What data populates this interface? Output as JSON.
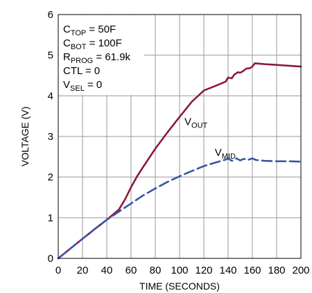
{
  "chart_data": {
    "type": "line",
    "title": "",
    "xlabel": "TIME (SECONDS)",
    "ylabel": "VOLTAGE (V)",
    "xlim": [
      0,
      200
    ],
    "ylim": [
      0,
      6
    ],
    "grid": true,
    "x_ticks": [
      0,
      20,
      40,
      60,
      80,
      100,
      120,
      140,
      160,
      180,
      200
    ],
    "y_ticks": [
      0,
      1,
      2,
      3,
      4,
      5,
      6
    ],
    "series": [
      {
        "name": "VOUT",
        "name_main": "V",
        "name_sub": "OUT",
        "color": "#8b1a3d",
        "style": "solid",
        "points": [
          [
            0,
            0
          ],
          [
            10,
            0.24
          ],
          [
            20,
            0.48
          ],
          [
            30,
            0.72
          ],
          [
            40,
            0.95
          ],
          [
            50,
            1.2
          ],
          [
            52,
            1.3
          ],
          [
            55,
            1.45
          ],
          [
            60,
            1.75
          ],
          [
            65,
            2.02
          ],
          [
            70,
            2.25
          ],
          [
            80,
            2.7
          ],
          [
            90,
            3.1
          ],
          [
            100,
            3.48
          ],
          [
            110,
            3.85
          ],
          [
            120,
            4.13
          ],
          [
            130,
            4.25
          ],
          [
            138,
            4.35
          ],
          [
            140,
            4.45
          ],
          [
            143,
            4.43
          ],
          [
            145,
            4.52
          ],
          [
            148,
            4.58
          ],
          [
            150,
            4.57
          ],
          [
            152,
            4.6
          ],
          [
            155,
            4.67
          ],
          [
            158,
            4.68
          ],
          [
            160,
            4.72
          ],
          [
            162,
            4.8
          ],
          [
            170,
            4.78
          ],
          [
            180,
            4.76
          ],
          [
            190,
            4.74
          ],
          [
            200,
            4.72
          ]
        ]
      },
      {
        "name": "VMID",
        "name_main": "V",
        "name_sub": "MID",
        "color": "#3a55a4",
        "style": "dashed",
        "points": [
          [
            0,
            0
          ],
          [
            10,
            0.24
          ],
          [
            20,
            0.48
          ],
          [
            30,
            0.72
          ],
          [
            40,
            0.95
          ],
          [
            50,
            1.15
          ],
          [
            60,
            1.35
          ],
          [
            70,
            1.55
          ],
          [
            80,
            1.72
          ],
          [
            90,
            1.88
          ],
          [
            100,
            2.02
          ],
          [
            110,
            2.15
          ],
          [
            120,
            2.27
          ],
          [
            130,
            2.36
          ],
          [
            138,
            2.43
          ],
          [
            140,
            2.46
          ],
          [
            143,
            2.4
          ],
          [
            147,
            2.46
          ],
          [
            150,
            2.41
          ],
          [
            153,
            2.45
          ],
          [
            156,
            2.42
          ],
          [
            160,
            2.46
          ],
          [
            163,
            2.42
          ],
          [
            170,
            2.4
          ],
          [
            180,
            2.39
          ],
          [
            190,
            2.39
          ],
          [
            200,
            2.38
          ]
        ]
      }
    ],
    "annotations": [
      {
        "main": "C",
        "sub": "TOP",
        "rest": " = 50F"
      },
      {
        "main": "C",
        "sub": "BOT",
        "rest": " = 100F"
      },
      {
        "main": "R",
        "sub": "PROG",
        "rest": " = 61.9k"
      },
      {
        "main": "CTL = 0",
        "sub": "",
        "rest": ""
      },
      {
        "main": "V",
        "sub": "SEL",
        "rest": " = 0"
      }
    ]
  }
}
